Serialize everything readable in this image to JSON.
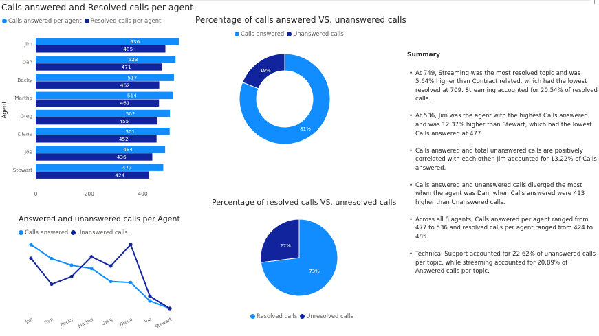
{
  "colors": {
    "light": "#118DFF",
    "dark": "#12239E",
    "axis_text": "#605e5c",
    "grid": "#e1dfdd"
  },
  "bar_chart": {
    "title": "Calls answered and Resolved calls per agent",
    "legend": [
      "Calls answered per agent",
      "Resolved calls per agent"
    ],
    "ylabel": "Agent",
    "x_ticks": [
      "0",
      "200",
      "400"
    ]
  },
  "donut_chart": {
    "title": "Percentage of calls answered VS. unanswered calls",
    "legend": [
      "Calls answered",
      "Unanswered calls"
    ]
  },
  "line_chart": {
    "title": "Answered and unanswered calls per Agent",
    "legend": [
      "Calls answered",
      "Unanswered calls"
    ]
  },
  "pie_chart": {
    "title": "Percentage of resolved calls VS. unresolved calls",
    "legend": [
      "Resolved calls",
      "Unresolved calls"
    ]
  },
  "summary": {
    "title": "Summary",
    "bullets": [
      "At 749, Streaming was the most resolved topic and was 5.64% higher than Contract related, which had the lowest resolved at 709. Streaming accounted for 20.54% of resolved calls.",
      "At 536, Jim was the agent with the highest Calls answered and was 12.37% higher than Stewart, which had the lowest Calls answered at 477.",
      "Calls answered and total unanswered calls are positively correlated with each other.  Jim accounted for 13.22% of Calls answered.",
      "Calls answered and unanswered calls diverged the most when the agent was Dan, when Calls answered were 413 higher than Unanswered calls.",
      "Across all 8 agents, Calls answered per agent ranged from 477 to 536 and resolved calls per agent ranged from 424 to 485.",
      "Technical Support accounted for 22.62% of unanswered calls per topic, while streaming accounted for 20.89% of Answered calls per topic."
    ]
  },
  "chart_data": [
    {
      "type": "bar",
      "orientation": "horizontal",
      "title": "Calls answered and Resolved calls per agent",
      "ylabel": "Agent",
      "xlim": [
        0,
        530
      ],
      "categories": [
        "Jim",
        "Dan",
        "Becky",
        "Martha",
        "Greg",
        "Diane",
        "Joe",
        "Stewart"
      ],
      "series": [
        {
          "name": "Calls answered per agent",
          "values": [
            536,
            523,
            517,
            514,
            502,
            501,
            484,
            477
          ]
        },
        {
          "name": "Resolved calls per agent",
          "values": [
            485,
            471,
            462,
            461,
            455,
            452,
            436,
            424
          ]
        }
      ]
    },
    {
      "type": "pie",
      "donut": true,
      "title": "Percentage of calls answered VS. unanswered calls",
      "categories": [
        "Calls answered",
        "Unanswered calls"
      ],
      "values": [
        81,
        19
      ],
      "labels": [
        "81%",
        "19%"
      ]
    },
    {
      "type": "line",
      "title": "Answered and unanswered calls per Agent",
      "categories": [
        "Jim",
        "Dan",
        "Becky",
        "Martha",
        "Greg",
        "Diane",
        "Joe",
        "Stewart"
      ],
      "series": [
        {
          "name": "Calls answered",
          "values": [
            536,
            523,
            517,
            514,
            502,
            501,
            484,
            477
          ]
        },
        {
          "name": "Unanswered calls",
          "values": [
            127,
            110,
            115,
            128,
            122,
            136,
            102,
            94
          ]
        }
      ]
    },
    {
      "type": "pie",
      "title": "Percentage of resolved calls VS. unresolved calls",
      "categories": [
        "Resolved calls",
        "Unresolved calls"
      ],
      "values": [
        73,
        27
      ],
      "labels": [
        "73%",
        "27%"
      ]
    }
  ]
}
